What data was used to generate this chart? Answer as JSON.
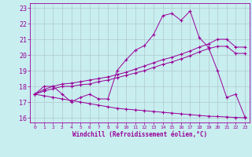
{
  "xlabel": "Windchill (Refroidissement éolien,°C)",
  "background_color": "#c8eef0",
  "line_color": "#990099",
  "grid_color": "#b0c8cc",
  "xlim": [
    -0.5,
    23.5
  ],
  "ylim": [
    15.7,
    23.3
  ],
  "xticks": [
    0,
    1,
    2,
    3,
    4,
    5,
    6,
    7,
    8,
    9,
    10,
    11,
    12,
    13,
    14,
    15,
    16,
    17,
    18,
    19,
    20,
    21,
    22,
    23
  ],
  "yticks": [
    16,
    17,
    18,
    19,
    20,
    21,
    22,
    23
  ],
  "line1_x": [
    0,
    1,
    2,
    3,
    4,
    5,
    6,
    7,
    8,
    9,
    10,
    11,
    12,
    13,
    14,
    15,
    16,
    17,
    18,
    19,
    20,
    21,
    22,
    23
  ],
  "line1_y": [
    17.5,
    18.0,
    18.0,
    17.5,
    17.0,
    17.3,
    17.5,
    17.2,
    17.2,
    19.0,
    19.7,
    20.3,
    20.6,
    21.3,
    22.5,
    22.65,
    22.2,
    22.8,
    21.1,
    20.5,
    19.0,
    17.3,
    17.5,
    16.05
  ],
  "line2_x": [
    0,
    1,
    2,
    3,
    4,
    5,
    6,
    7,
    8,
    9,
    10,
    11,
    12,
    13,
    14,
    15,
    16,
    17,
    18,
    19,
    20,
    21,
    22,
    23
  ],
  "line2_y": [
    17.5,
    17.8,
    18.0,
    18.15,
    18.2,
    18.3,
    18.4,
    18.5,
    18.6,
    18.75,
    18.9,
    19.1,
    19.3,
    19.5,
    19.7,
    19.85,
    20.05,
    20.25,
    20.5,
    20.7,
    21.0,
    21.0,
    20.5,
    20.5
  ],
  "line3_x": [
    0,
    1,
    2,
    3,
    4,
    5,
    6,
    7,
    8,
    9,
    10,
    11,
    12,
    13,
    14,
    15,
    16,
    17,
    18,
    19,
    20,
    21,
    22,
    23
  ],
  "line3_y": [
    17.5,
    17.7,
    17.85,
    18.0,
    18.0,
    18.1,
    18.15,
    18.3,
    18.4,
    18.55,
    18.7,
    18.85,
    19.0,
    19.2,
    19.4,
    19.55,
    19.75,
    19.95,
    20.2,
    20.4,
    20.55,
    20.55,
    20.1,
    20.1
  ],
  "line4_x": [
    0,
    1,
    2,
    3,
    4,
    5,
    6,
    7,
    8,
    9,
    10,
    11,
    12,
    13,
    14,
    15,
    16,
    17,
    18,
    19,
    20,
    21,
    22,
    23
  ],
  "line4_y": [
    17.5,
    17.4,
    17.3,
    17.2,
    17.1,
    17.0,
    16.9,
    16.8,
    16.7,
    16.6,
    16.55,
    16.5,
    16.45,
    16.4,
    16.35,
    16.3,
    16.25,
    16.2,
    16.15,
    16.1,
    16.08,
    16.05,
    16.02,
    16.0
  ]
}
